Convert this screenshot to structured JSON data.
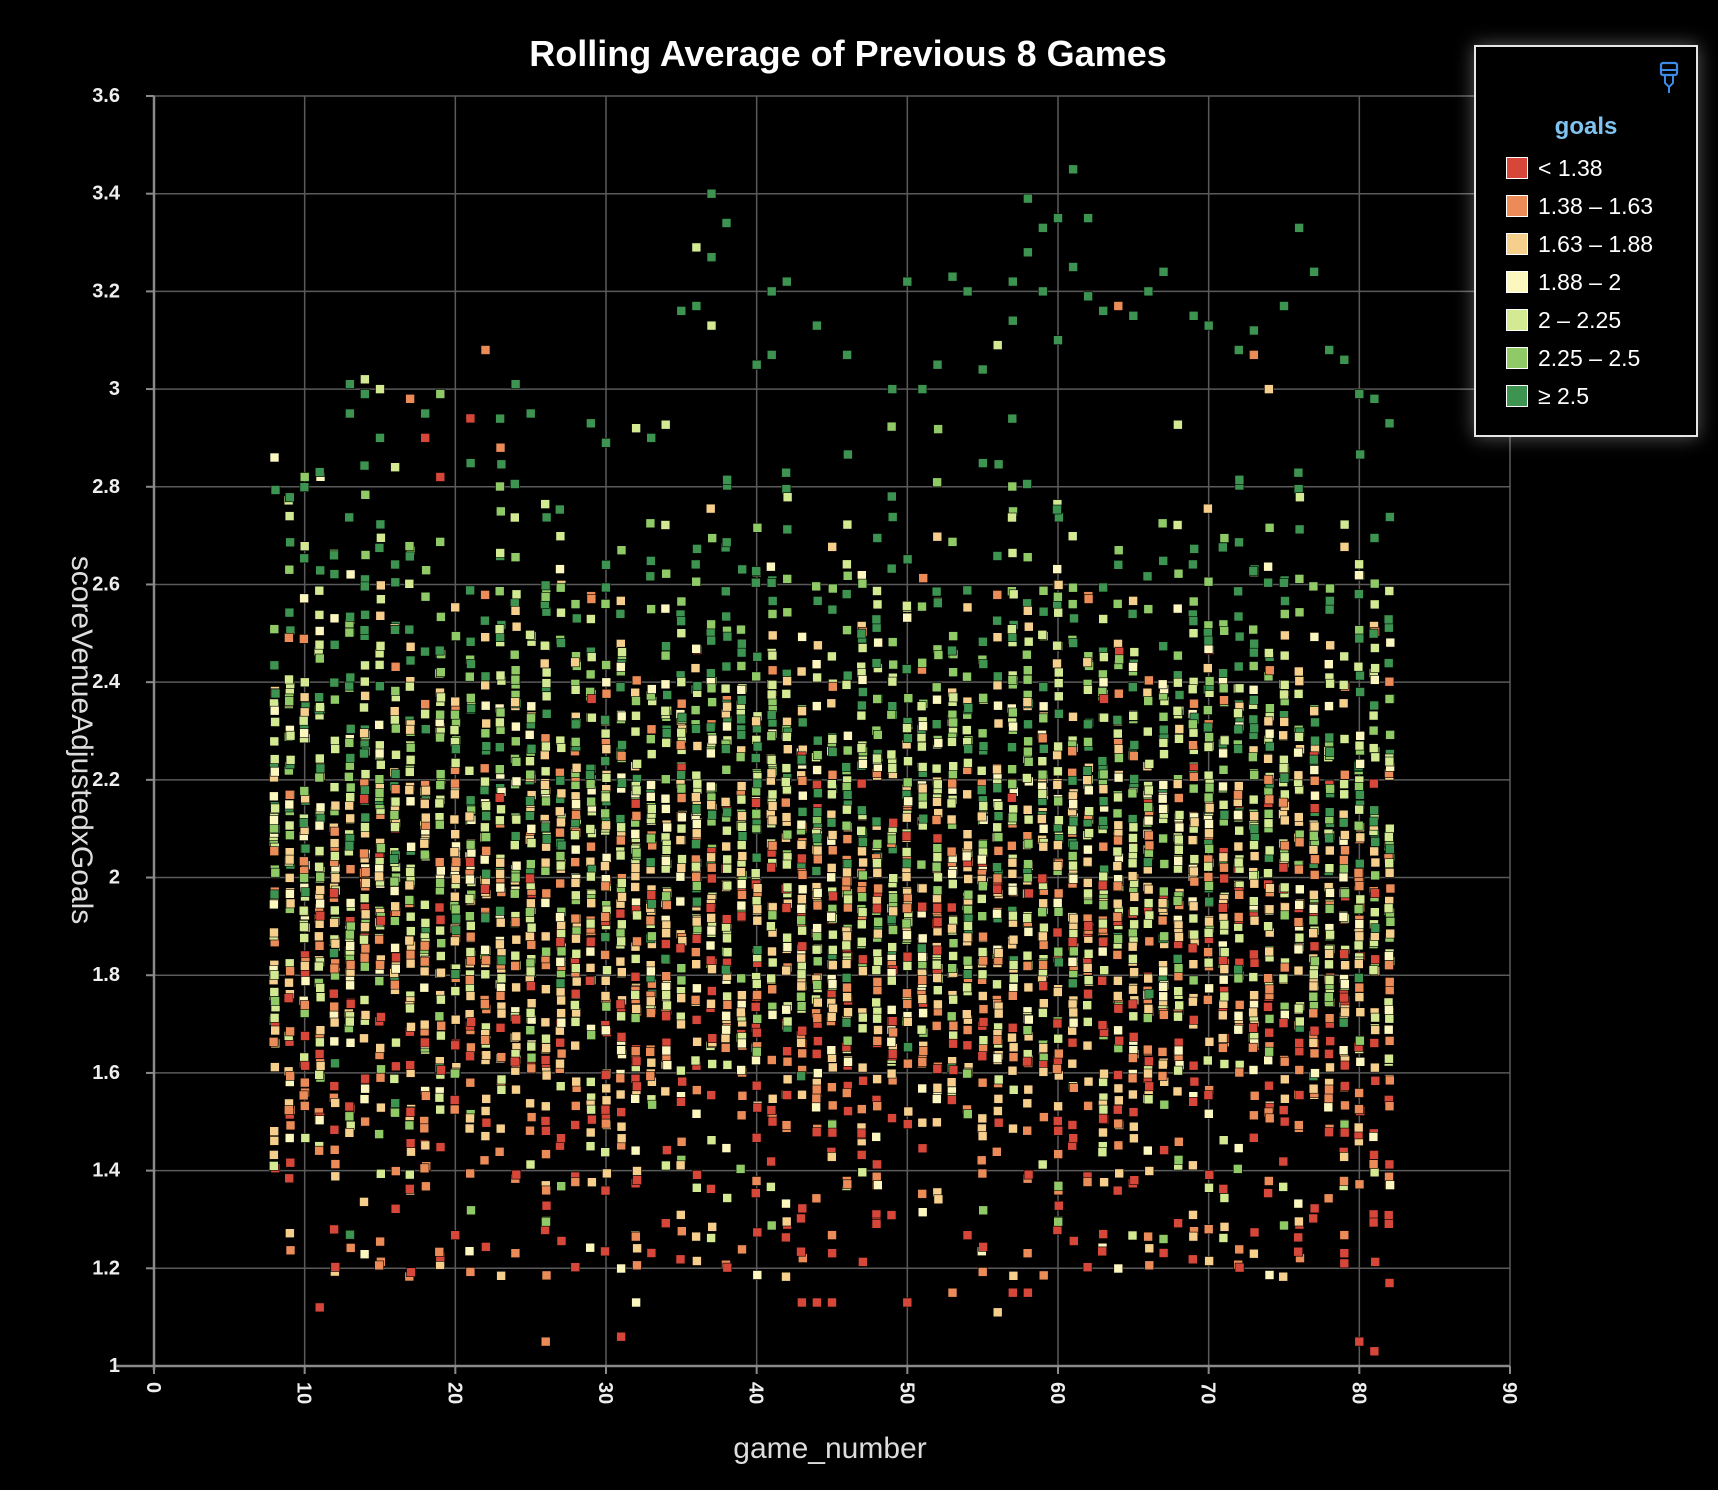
{
  "chart_data": {
    "type": "scatter",
    "title": "Rolling Average of Previous 8 Games",
    "xlabel": "game_number",
    "ylabel": "scoreVenueAdjustedxGoals",
    "xlim": [
      0,
      90
    ],
    "ylim": [
      1,
      3.6
    ],
    "x_ticks": [
      "0",
      "10",
      "20",
      "30",
      "40",
      "50",
      "60",
      "70",
      "80",
      "90"
    ],
    "y_ticks": [
      "1",
      "1.2",
      "1.4",
      "1.6",
      "1.8",
      "2",
      "2.2",
      "2.4",
      "2.6",
      "2.8",
      "3",
      "3.2",
      "3.4",
      "3.6"
    ],
    "grid": true,
    "x_range_of_points": [
      8,
      82
    ],
    "color_field": "goals",
    "legend": {
      "title": "goals",
      "position": "top-right",
      "items": [
        {
          "label": "< 1.38",
          "color": "#d6473a"
        },
        {
          "label": "1.38 – 1.63",
          "color": "#eb8c58"
        },
        {
          "label": "1.63 – 1.88",
          "color": "#f6cf8c"
        },
        {
          "label": "1.88 – 2",
          "color": "#fcf6bf"
        },
        {
          "label": "2 – 2.25",
          "color": "#d3ea92"
        },
        {
          "label": "2.25 – 2.5",
          "color": "#8fca66"
        },
        {
          "label": "≥ 2.5",
          "color": "#3d9350"
        }
      ]
    },
    "outliers": [
      {
        "x": 8,
        "y": 2.86,
        "c": 3
      },
      {
        "x": 9,
        "y": 2.74,
        "c": 4
      },
      {
        "x": 10,
        "y": 2.82,
        "c": 5
      },
      {
        "x": 11,
        "y": 2.83,
        "c": 6
      },
      {
        "x": 13,
        "y": 3.01,
        "c": 6
      },
      {
        "x": 13,
        "y": 2.95,
        "c": 6
      },
      {
        "x": 14,
        "y": 3.02,
        "c": 4
      },
      {
        "x": 14,
        "y": 2.99,
        "c": 6
      },
      {
        "x": 15,
        "y": 3.0,
        "c": 4
      },
      {
        "x": 15,
        "y": 2.9,
        "c": 6
      },
      {
        "x": 16,
        "y": 2.84,
        "c": 4
      },
      {
        "x": 17,
        "y": 2.98,
        "c": 1
      },
      {
        "x": 18,
        "y": 2.9,
        "c": 0
      },
      {
        "x": 18,
        "y": 2.95,
        "c": 6
      },
      {
        "x": 19,
        "y": 2.99,
        "c": 5
      },
      {
        "x": 19,
        "y": 2.82,
        "c": 0
      },
      {
        "x": 21,
        "y": 2.94,
        "c": 0
      },
      {
        "x": 22,
        "y": 3.08,
        "c": 1
      },
      {
        "x": 23,
        "y": 2.88,
        "c": 1
      },
      {
        "x": 24,
        "y": 3.01,
        "c": 6
      },
      {
        "x": 25,
        "y": 2.95,
        "c": 6
      },
      {
        "x": 29,
        "y": 2.93,
        "c": 6
      },
      {
        "x": 30,
        "y": 2.89,
        "c": 6
      },
      {
        "x": 32,
        "y": 2.92,
        "c": 4
      },
      {
        "x": 33,
        "y": 2.9,
        "c": 6
      },
      {
        "x": 35,
        "y": 3.16,
        "c": 6
      },
      {
        "x": 36,
        "y": 3.29,
        "c": 4
      },
      {
        "x": 36,
        "y": 3.17,
        "c": 6
      },
      {
        "x": 37,
        "y": 3.4,
        "c": 6
      },
      {
        "x": 37,
        "y": 3.27,
        "c": 6
      },
      {
        "x": 37,
        "y": 3.13,
        "c": 4
      },
      {
        "x": 38,
        "y": 3.34,
        "c": 6
      },
      {
        "x": 40,
        "y": 3.05,
        "c": 6
      },
      {
        "x": 41,
        "y": 3.07,
        "c": 6
      },
      {
        "x": 41,
        "y": 3.2,
        "c": 6
      },
      {
        "x": 42,
        "y": 3.22,
        "c": 6
      },
      {
        "x": 44,
        "y": 3.13,
        "c": 6
      },
      {
        "x": 46,
        "y": 3.07,
        "c": 6
      },
      {
        "x": 49,
        "y": 3.0,
        "c": 6
      },
      {
        "x": 50,
        "y": 3.22,
        "c": 6
      },
      {
        "x": 51,
        "y": 3.0,
        "c": 6
      },
      {
        "x": 52,
        "y": 3.05,
        "c": 6
      },
      {
        "x": 53,
        "y": 3.23,
        "c": 6
      },
      {
        "x": 54,
        "y": 3.2,
        "c": 6
      },
      {
        "x": 55,
        "y": 3.04,
        "c": 6
      },
      {
        "x": 56,
        "y": 3.09,
        "c": 4
      },
      {
        "x": 57,
        "y": 3.22,
        "c": 6
      },
      {
        "x": 57,
        "y": 3.14,
        "c": 6
      },
      {
        "x": 58,
        "y": 3.39,
        "c": 6
      },
      {
        "x": 58,
        "y": 3.28,
        "c": 6
      },
      {
        "x": 59,
        "y": 3.33,
        "c": 6
      },
      {
        "x": 59,
        "y": 3.2,
        "c": 6
      },
      {
        "x": 60,
        "y": 3.35,
        "c": 6
      },
      {
        "x": 60,
        "y": 3.1,
        "c": 6
      },
      {
        "x": 61,
        "y": 3.45,
        "c": 6
      },
      {
        "x": 61,
        "y": 3.25,
        "c": 6
      },
      {
        "x": 62,
        "y": 3.35,
        "c": 6
      },
      {
        "x": 62,
        "y": 3.19,
        "c": 6
      },
      {
        "x": 63,
        "y": 3.16,
        "c": 6
      },
      {
        "x": 64,
        "y": 3.17,
        "c": 1
      },
      {
        "x": 65,
        "y": 3.15,
        "c": 6
      },
      {
        "x": 66,
        "y": 3.2,
        "c": 6
      },
      {
        "x": 67,
        "y": 3.24,
        "c": 6
      },
      {
        "x": 69,
        "y": 3.15,
        "c": 6
      },
      {
        "x": 70,
        "y": 3.13,
        "c": 6
      },
      {
        "x": 72,
        "y": 3.08,
        "c": 6
      },
      {
        "x": 73,
        "y": 3.12,
        "c": 6
      },
      {
        "x": 73,
        "y": 3.07,
        "c": 1
      },
      {
        "x": 74,
        "y": 3.0,
        "c": 2
      },
      {
        "x": 75,
        "y": 3.17,
        "c": 6
      },
      {
        "x": 76,
        "y": 3.33,
        "c": 6
      },
      {
        "x": 77,
        "y": 3.24,
        "c": 6
      },
      {
        "x": 78,
        "y": 3.08,
        "c": 6
      },
      {
        "x": 79,
        "y": 3.06,
        "c": 6
      },
      {
        "x": 80,
        "y": 2.99,
        "c": 6
      },
      {
        "x": 81,
        "y": 2.98,
        "c": 6
      },
      {
        "x": 82,
        "y": 2.93,
        "c": 6
      },
      {
        "x": 11,
        "y": 1.12,
        "c": 0
      },
      {
        "x": 26,
        "y": 1.05,
        "c": 1
      },
      {
        "x": 31,
        "y": 1.06,
        "c": 0
      },
      {
        "x": 32,
        "y": 1.13,
        "c": 3
      },
      {
        "x": 43,
        "y": 1.13,
        "c": 0
      },
      {
        "x": 44,
        "y": 1.13,
        "c": 0
      },
      {
        "x": 45,
        "y": 1.13,
        "c": 0
      },
      {
        "x": 50,
        "y": 1.13,
        "c": 0
      },
      {
        "x": 53,
        "y": 1.15,
        "c": 1
      },
      {
        "x": 56,
        "y": 1.11,
        "c": 2
      },
      {
        "x": 57,
        "y": 1.15,
        "c": 0
      },
      {
        "x": 58,
        "y": 1.15,
        "c": 0
      },
      {
        "x": 80,
        "y": 1.05,
        "c": 0
      },
      {
        "x": 81,
        "y": 1.03,
        "c": 0
      },
      {
        "x": 82,
        "y": 1.17,
        "c": 0
      },
      {
        "x": 79,
        "y": 1.21,
        "c": 0
      },
      {
        "x": 67,
        "y": 1.26,
        "c": 5
      },
      {
        "x": 63,
        "y": 1.27,
        "c": 0
      },
      {
        "x": 73,
        "y": 1.23,
        "c": 2
      },
      {
        "x": 70,
        "y": 1.28,
        "c": 1
      }
    ]
  },
  "toolbar": {
    "pin_icon": "pin-icon"
  }
}
